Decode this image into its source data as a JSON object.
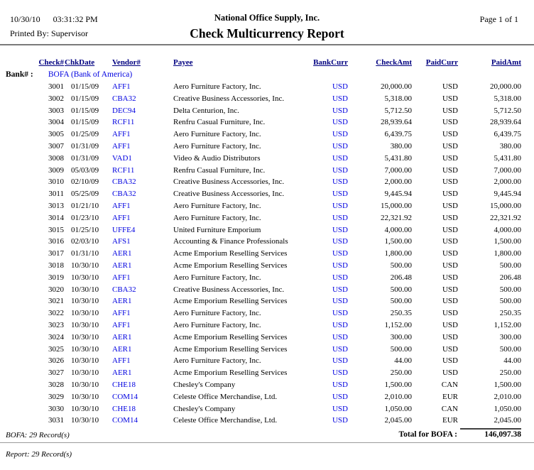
{
  "header": {
    "date": "10/30/10",
    "time": "03:31:32 PM",
    "company": "National Office Supply, Inc.",
    "page_label": "Page 1 of 1",
    "printed_by": "Printed By: Supervisor",
    "title": "Check Multicurrency Report"
  },
  "table": {
    "columns": [
      "Check#",
      "ChkDate",
      "Vendor#",
      "Payee",
      "BankCurr",
      "CheckAmt",
      "PaidCurr",
      "PaidAmt"
    ],
    "bank_label": "Bank# :",
    "bank_value": "BOFA (Bank of America)",
    "rows": [
      [
        "3001",
        "01/15/09",
        "AFF1",
        "Aero Furniture Factory, Inc.",
        "USD",
        "20,000.00",
        "USD",
        "20,000.00"
      ],
      [
        "3002",
        "01/15/09",
        "CBA32",
        "Creative Business Accessories, Inc.",
        "USD",
        "5,318.00",
        "USD",
        "5,318.00"
      ],
      [
        "3003",
        "01/15/09",
        "DEC94",
        "Delta Centurion, Inc.",
        "USD",
        "5,712.50",
        "USD",
        "5,712.50"
      ],
      [
        "3004",
        "01/15/09",
        "RCF11",
        "Renfru Casual Furniture, Inc.",
        "USD",
        "28,939.64",
        "USD",
        "28,939.64"
      ],
      [
        "3005",
        "01/25/09",
        "AFF1",
        "Aero Furniture Factory, Inc.",
        "USD",
        "6,439.75",
        "USD",
        "6,439.75"
      ],
      [
        "3007",
        "01/31/09",
        "AFF1",
        "Aero Furniture Factory, Inc.",
        "USD",
        "380.00",
        "USD",
        "380.00"
      ],
      [
        "3008",
        "01/31/09",
        "VAD1",
        "Video & Audio Distributors",
        "USD",
        "5,431.80",
        "USD",
        "5,431.80"
      ],
      [
        "3009",
        "05/03/09",
        "RCF11",
        "Renfru Casual Furniture, Inc.",
        "USD",
        "7,000.00",
        "USD",
        "7,000.00"
      ],
      [
        "3010",
        "02/10/09",
        "CBA32",
        "Creative Business Accessories, Inc.",
        "USD",
        "2,000.00",
        "USD",
        "2,000.00"
      ],
      [
        "3011",
        "05/25/09",
        "CBA32",
        "Creative Business Accessories, Inc.",
        "USD",
        "9,445.94",
        "USD",
        "9,445.94"
      ],
      [
        "3013",
        "01/21/10",
        "AFF1",
        "Aero Furniture Factory, Inc.",
        "USD",
        "15,000.00",
        "USD",
        "15,000.00"
      ],
      [
        "3014",
        "01/23/10",
        "AFF1",
        "Aero Furniture Factory, Inc.",
        "USD",
        "22,321.92",
        "USD",
        "22,321.92"
      ],
      [
        "3015",
        "01/25/10",
        "UFFE4",
        "United Furniture Emporium",
        "USD",
        "4,000.00",
        "USD",
        "4,000.00"
      ],
      [
        "3016",
        "02/03/10",
        "AFS1",
        "Accounting & Finance Professionals",
        "USD",
        "1,500.00",
        "USD",
        "1,500.00"
      ],
      [
        "3017",
        "01/31/10",
        "AER1",
        "Acme Emporium Reselling Services",
        "USD",
        "1,800.00",
        "USD",
        "1,800.00"
      ],
      [
        "3018",
        "10/30/10",
        "AER1",
        "Acme Emporium Reselling Services",
        "USD",
        "500.00",
        "USD",
        "500.00"
      ],
      [
        "3019",
        "10/30/10",
        "AFF1",
        "Aero Furniture Factory, Inc.",
        "USD",
        "206.48",
        "USD",
        "206.48"
      ],
      [
        "3020",
        "10/30/10",
        "CBA32",
        "Creative Business Accessories, Inc.",
        "USD",
        "500.00",
        "USD",
        "500.00"
      ],
      [
        "3021",
        "10/30/10",
        "AER1",
        "Acme Emporium Reselling Services",
        "USD",
        "500.00",
        "USD",
        "500.00"
      ],
      [
        "3022",
        "10/30/10",
        "AFF1",
        "Aero Furniture Factory, Inc.",
        "USD",
        "250.35",
        "USD",
        "250.35"
      ],
      [
        "3023",
        "10/30/10",
        "AFF1",
        "Aero Furniture Factory, Inc.",
        "USD",
        "1,152.00",
        "USD",
        "1,152.00"
      ],
      [
        "3024",
        "10/30/10",
        "AER1",
        "Acme Emporium Reselling Services",
        "USD",
        "300.00",
        "USD",
        "300.00"
      ],
      [
        "3025",
        "10/30/10",
        "AER1",
        "Acme Emporium Reselling Services",
        "USD",
        "500.00",
        "USD",
        "500.00"
      ],
      [
        "3026",
        "10/30/10",
        "AFF1",
        "Aero Furniture Factory, Inc.",
        "USD",
        "44.00",
        "USD",
        "44.00"
      ],
      [
        "3027",
        "10/30/10",
        "AER1",
        "Acme Emporium Reselling Services",
        "USD",
        "250.00",
        "USD",
        "250.00"
      ],
      [
        "3028",
        "10/30/10",
        "CHE18",
        "Chesley's Company",
        "USD",
        "1,500.00",
        "CAN",
        "1,500.00"
      ],
      [
        "3029",
        "10/30/10",
        "COM14",
        "Celeste Office Merchandise, Ltd.",
        "USD",
        "2,010.00",
        "EUR",
        "2,010.00"
      ],
      [
        "3030",
        "10/30/10",
        "CHE18",
        "Chesley's Company",
        "USD",
        "1,050.00",
        "CAN",
        "1,050.00"
      ],
      [
        "3031",
        "10/30/10",
        "COM14",
        "Celeste Office Merchandise, Ltd.",
        "USD",
        "2,045.00",
        "EUR",
        "2,045.00"
      ]
    ],
    "total_label": "Total for BOFA :",
    "total_amount": "146,097.38",
    "group_count": "BOFA: 29 Record(s)",
    "report_count": "Report: 29 Record(s)"
  },
  "colors": {
    "header_navy": "#000080",
    "link_blue": "#0000e0"
  }
}
